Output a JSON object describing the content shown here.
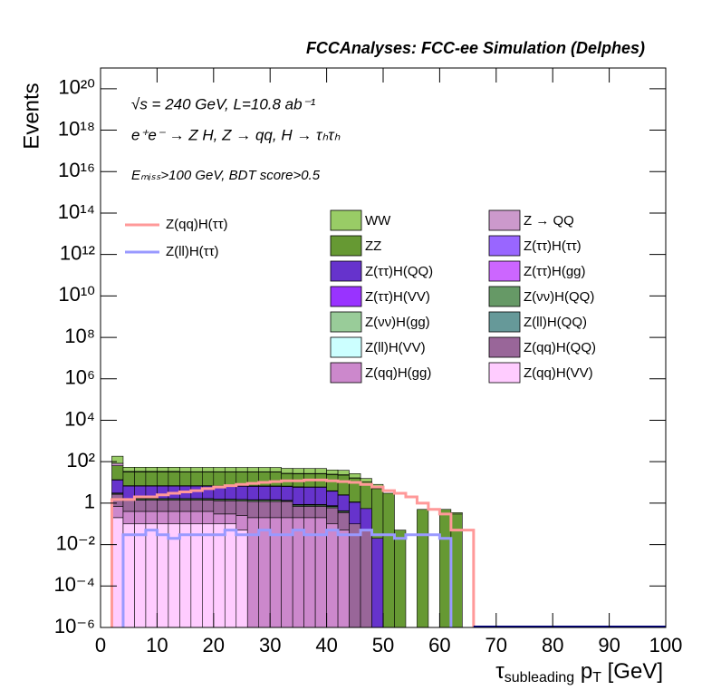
{
  "chart_data": {
    "type": "stacked_histogram",
    "title": "FCCAnalyses: FCC-ee Simulation (Delphes)",
    "annotations": [
      "√s = 240 GeV, L=10.8 ab⁻¹",
      "e⁺e⁻ → Z H, Z → qq, H → τₕτₕ",
      "Eₘᵢₛₛ>100 GeV, BDT score>0.5"
    ],
    "y_label": "Events",
    "x_label": [
      "τ",
      "subleading",
      " p",
      "T",
      " [GeV]"
    ],
    "log_y": true,
    "xlim": [
      0,
      100
    ],
    "xticks": [
      0,
      10,
      20,
      30,
      40,
      50,
      60,
      70,
      80,
      90,
      100
    ],
    "ylim": [
      1e-06,
      1e+21
    ],
    "yticks": [
      {
        "value": 1e-06,
        "label": "10⁻⁶"
      },
      {
        "value": 0.0001,
        "label": "10⁻⁴"
      },
      {
        "value": 0.01,
        "label": "10⁻²"
      },
      1,
      {
        "value": 100,
        "label": "10²"
      },
      {
        "value": 10000,
        "label": "10⁴"
      },
      {
        "value": 1000000.0,
        "label": "10⁶"
      },
      {
        "value": 100000000.0,
        "label": "10⁸"
      },
      {
        "value": 10000000000.0,
        "label": "10¹⁰"
      },
      {
        "value": 1000000000000.0,
        "label": "10¹²"
      },
      {
        "value": 100000000000000.0,
        "label": "10¹⁴"
      },
      {
        "value": 1e+16,
        "label": "10¹⁶"
      },
      {
        "value": 1e+18,
        "label": "10¹⁸"
      },
      {
        "value": 1e+20,
        "label": "10²⁰"
      }
    ],
    "bins": [
      0,
      2,
      4,
      6,
      8,
      10,
      12,
      14,
      16,
      18,
      20,
      22,
      24,
      26,
      28,
      30,
      32,
      34,
      36,
      38,
      40,
      42,
      44,
      46,
      48,
      50,
      52,
      54,
      56,
      58,
      60,
      62,
      64,
      66,
      68,
      70,
      72,
      74,
      76,
      78,
      80,
      82,
      84,
      86,
      88,
      90,
      92,
      94,
      96,
      98,
      100
    ],
    "series": [
      {
        "name": "WW",
        "color": "#99cc66",
        "values": [
          0,
          100,
          20,
          20,
          20,
          20,
          20,
          20,
          20,
          20,
          20,
          20,
          20,
          20,
          20,
          20,
          20,
          20,
          20,
          20,
          15,
          15,
          10,
          5,
          3,
          0,
          0,
          0,
          0,
          0,
          0,
          0.05,
          0,
          0,
          0,
          0,
          0,
          0,
          0,
          0,
          0,
          0,
          0,
          0,
          0,
          0,
          0,
          0,
          0,
          0
        ]
      },
      {
        "name": "Z → QQ",
        "color": "#cc99cc",
        "values": [
          0,
          20,
          2,
          2,
          2,
          2,
          2,
          1,
          1,
          1,
          1,
          1,
          1,
          1,
          1,
          1,
          1,
          1,
          1,
          1,
          1,
          1,
          0.5,
          0,
          0,
          0,
          0,
          0,
          0,
          0,
          0,
          0,
          0,
          0,
          0,
          0,
          0,
          0,
          0,
          0,
          0,
          0,
          0,
          0,
          0,
          0,
          0,
          0,
          0,
          0
        ]
      },
      {
        "name": "ZZ",
        "color": "#669933",
        "values": [
          0,
          50,
          25,
          25,
          25,
          25,
          25,
          25,
          25,
          25,
          25,
          25,
          25,
          25,
          25,
          25,
          20,
          20,
          20,
          20,
          20,
          20,
          15,
          10,
          5,
          3,
          0.05,
          0,
          0.5,
          0,
          0.5,
          0.3,
          0,
          0,
          0,
          0,
          0,
          0,
          0,
          0,
          0,
          0,
          0,
          0,
          0,
          0,
          0,
          0,
          0,
          0
        ]
      },
      {
        "name": "Z(ττ)H(ττ)",
        "color": "#9966ff",
        "values": [
          0,
          0.5,
          0.3,
          0.3,
          0.3,
          0.3,
          0.3,
          0.3,
          0.3,
          0.3,
          0.3,
          0.3,
          0.3,
          0.3,
          0.3,
          0.3,
          0.3,
          0.3,
          0.2,
          0.2,
          0.2,
          0.1,
          0.05,
          0,
          0,
          0,
          0,
          0,
          0,
          0,
          0,
          0,
          0,
          0,
          0,
          0,
          0,
          0,
          0,
          0,
          0,
          0,
          0,
          0,
          0,
          0,
          0,
          0,
          0,
          0
        ]
      },
      {
        "name": "Z(ττ)H(QQ)",
        "color": "#6633cc",
        "values": [
          0,
          10,
          5,
          5,
          5,
          5,
          5,
          5,
          5,
          5,
          5,
          5,
          5,
          5,
          5,
          5,
          5,
          5,
          5,
          5,
          3,
          2,
          1,
          0.5,
          0.02,
          0,
          0,
          0,
          0,
          0,
          0,
          0,
          0,
          0,
          0,
          0,
          0,
          0,
          0,
          0,
          0,
          0,
          0,
          0,
          0,
          0,
          0,
          0,
          0,
          0
        ]
      },
      {
        "name": "Z(ττ)H(gg)",
        "color": "#cc66ff",
        "values": [
          0,
          0.05,
          0.05,
          0.05,
          0.05,
          0.05,
          0.05,
          0.05,
          0.05,
          0.05,
          0.05,
          0.05,
          0.05,
          0.05,
          0.05,
          0.05,
          0.05,
          0.05,
          0.05,
          0.05,
          0.05,
          0.03,
          0,
          0,
          0,
          0,
          0,
          0,
          0,
          0,
          0,
          0,
          0,
          0,
          0,
          0,
          0,
          0,
          0,
          0,
          0,
          0,
          0,
          0,
          0,
          0,
          0,
          0,
          0,
          0
        ]
      },
      {
        "name": "Z(ττ)H(VV)",
        "color": "#9933ff",
        "values": [
          0,
          0.02,
          0.02,
          0.01,
          0.02,
          0.01,
          0.02,
          0.01,
          0.02,
          0.01,
          0.02,
          0.01,
          0.02,
          0.01,
          0.02,
          0.01,
          0.02,
          0.01,
          0.02,
          0.01,
          0.01,
          0,
          0,
          0,
          0,
          0,
          0,
          0,
          0,
          0,
          0,
          0,
          0,
          0,
          0,
          0,
          0,
          0,
          0,
          0,
          0,
          0,
          0,
          0,
          0,
          0,
          0,
          0,
          0,
          0
        ]
      },
      {
        "name": "Z(νν)H(QQ)",
        "color": "#669966",
        "values": [
          0,
          0.3,
          0.2,
          0.2,
          0.2,
          0.2,
          0.2,
          0.2,
          0.2,
          0.2,
          0.2,
          0.2,
          0.2,
          0.2,
          0.2,
          0.2,
          0.1,
          0.1,
          0.1,
          0.1,
          0.1,
          0.05,
          0,
          0,
          0,
          0,
          0,
          0,
          0,
          0,
          0,
          0,
          0,
          0,
          0,
          0,
          0,
          0,
          0,
          0,
          0,
          0,
          0,
          0,
          0,
          0,
          0,
          0,
          0,
          0
        ]
      },
      {
        "name": "Z(νν)H(gg)",
        "color": "#99cc99",
        "values": [
          0,
          0.01,
          0,
          0.01,
          0,
          0.01,
          0,
          0.01,
          0,
          0.01,
          0,
          0.01,
          0,
          0,
          0,
          0,
          0,
          0,
          0,
          0,
          0,
          0,
          0,
          0,
          0,
          0,
          0,
          0,
          0,
          0,
          0,
          0,
          0,
          0,
          0,
          0,
          0,
          0,
          0,
          0,
          0,
          0,
          0,
          0,
          0,
          0,
          0,
          0,
          0,
          0
        ]
      },
      {
        "name": "Z(ll)H(QQ)",
        "color": "#669999",
        "values": [
          0,
          0.005,
          0,
          0,
          0,
          0,
          0,
          0,
          0,
          0.002,
          0,
          0,
          0,
          0,
          0,
          0,
          0,
          0,
          0,
          0,
          0,
          0,
          0,
          0,
          0,
          0,
          0,
          0,
          0,
          0,
          0,
          0,
          0,
          0,
          0,
          0,
          0,
          0,
          0,
          0,
          0,
          0,
          0,
          0,
          0,
          0,
          0,
          0,
          0,
          0
        ]
      },
      {
        "name": "Z(ll)H(VV)",
        "color": "#ccffff",
        "values": [
          0,
          0,
          0,
          0,
          0,
          0,
          0,
          0,
          0,
          0.001,
          0,
          0,
          0,
          0,
          0,
          0,
          0,
          0,
          0,
          0,
          0,
          0,
          0,
          0,
          0,
          0,
          0,
          0,
          0,
          0,
          0,
          0,
          0,
          0,
          0,
          0,
          0,
          0,
          0,
          0,
          0,
          0,
          0,
          0,
          0,
          0,
          0,
          0,
          0,
          0
        ]
      },
      {
        "name": "Z(qq)H(QQ)",
        "color": "#996699",
        "values": [
          0,
          2,
          1,
          1,
          1,
          1,
          1,
          1,
          1,
          1,
          1,
          1,
          1,
          1,
          1,
          1,
          1,
          0.5,
          0.5,
          0.5,
          0.5,
          0.3,
          0.1,
          0.05,
          0,
          0,
          0,
          0,
          0,
          0,
          0,
          0,
          0,
          0,
          0,
          0,
          0,
          0,
          0,
          0,
          0,
          0,
          0,
          0,
          0,
          0,
          0,
          0,
          0,
          0
        ]
      },
      {
        "name": "Z(qq)H(gg)",
        "color": "#cc88cc",
        "values": [
          0,
          0.5,
          0.3,
          0.3,
          0.3,
          0.3,
          0.3,
          0.3,
          0.3,
          0.3,
          0.2,
          0.2,
          0.2,
          0.2,
          0.2,
          0.2,
          0.2,
          0.2,
          0.2,
          0.2,
          0.1,
          0.05,
          0,
          0,
          0,
          0,
          0,
          0,
          0,
          0,
          0,
          0,
          0,
          0,
          0,
          0,
          0,
          0,
          0,
          0,
          0,
          0,
          0,
          0,
          0,
          0,
          0,
          0,
          0,
          0
        ]
      },
      {
        "name": "Z(qq)H(VV)",
        "color": "#ffccff",
        "values": [
          0,
          0.2,
          0.1,
          0.1,
          0.1,
          0.1,
          0.1,
          0.1,
          0.1,
          0.1,
          0.1,
          0.1,
          0.05,
          0,
          0,
          0,
          0,
          0,
          0,
          0,
          0,
          0,
          0,
          0,
          0,
          0,
          0,
          0,
          0,
          0,
          0,
          0,
          0,
          0,
          0,
          0,
          0,
          0,
          0,
          0,
          0,
          0,
          0,
          0,
          0,
          0,
          0,
          0,
          0,
          0
        ]
      }
    ],
    "line_series": [
      {
        "name": "Z(qq)H(ττ)",
        "color": "#ff9999",
        "values": [
          0,
          1.5,
          1.5,
          2,
          2,
          2.5,
          3,
          3.5,
          4,
          5,
          6,
          7,
          8,
          9,
          10,
          11,
          12,
          12,
          13,
          13,
          12,
          11,
          10,
          8,
          6,
          4,
          3,
          2,
          1,
          0.5,
          0.3,
          0.05,
          0.05,
          0,
          0,
          0,
          0,
          0,
          0,
          0,
          0,
          0,
          0,
          0,
          0,
          0,
          0,
          0,
          0,
          0
        ]
      },
      {
        "name": "Z(ll)H(ττ)",
        "color": "#9999ff",
        "values": [
          0,
          0,
          0.03,
          0.03,
          0.05,
          0.03,
          0.02,
          0.03,
          0.03,
          0.03,
          0.03,
          0.05,
          0.03,
          0.03,
          0.05,
          0.03,
          0.03,
          0.05,
          0.03,
          0.03,
          0.05,
          0.03,
          0.03,
          0.05,
          0.03,
          0.03,
          0.02,
          0.03,
          0.03,
          0.03,
          0.02,
          0,
          0,
          0,
          0,
          0,
          0,
          0,
          0,
          0,
          0,
          0,
          0,
          0,
          0,
          0,
          0,
          0,
          0,
          0
        ]
      }
    ]
  }
}
